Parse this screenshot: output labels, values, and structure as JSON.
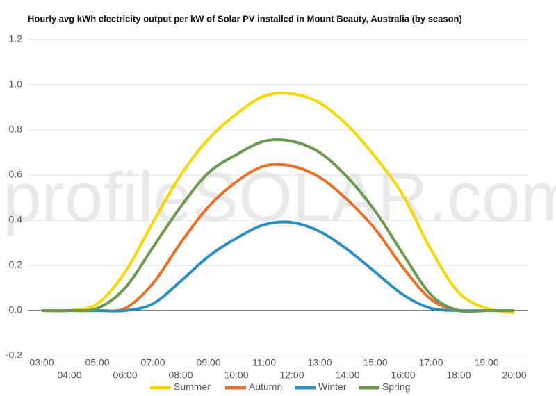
{
  "chart_data": {
    "type": "line",
    "title": "Hourly avg kWh electricity output per kW of Solar PV installed in Mount Beauty, Australia (by season)",
    "watermark": "profileSOLAR.com",
    "categories": [
      "03:00",
      "04:00",
      "05:00",
      "06:00",
      "07:00",
      "08:00",
      "09:00",
      "10:00",
      "11:00",
      "12:00",
      "13:00",
      "14:00",
      "15:00",
      "16:00",
      "17:00",
      "18:00",
      "19:00",
      "20:00"
    ],
    "series": [
      {
        "name": "Summer",
        "color": "#f5d800",
        "values": [
          0,
          0,
          0.03,
          0.17,
          0.39,
          0.6,
          0.76,
          0.87,
          0.95,
          0.96,
          0.92,
          0.82,
          0.68,
          0.51,
          0.27,
          0.08,
          0.01,
          -0.01
        ]
      },
      {
        "name": "Autumn",
        "color": "#e8712a",
        "values": [
          0,
          0,
          0,
          0.01,
          0.12,
          0.3,
          0.46,
          0.57,
          0.64,
          0.64,
          0.59,
          0.49,
          0.36,
          0.19,
          0.05,
          0,
          0,
          0
        ]
      },
      {
        "name": "Winter",
        "color": "#2a8fc1",
        "values": [
          0,
          0,
          0,
          0,
          0.03,
          0.13,
          0.24,
          0.32,
          0.38,
          0.39,
          0.35,
          0.27,
          0.17,
          0.07,
          0.01,
          0,
          0,
          0
        ]
      },
      {
        "name": "Spring",
        "color": "#6a9a4f",
        "values": [
          0,
          0,
          0.01,
          0.1,
          0.28,
          0.46,
          0.61,
          0.69,
          0.75,
          0.75,
          0.7,
          0.59,
          0.44,
          0.25,
          0.07,
          0,
          0,
          0
        ]
      }
    ],
    "ylim": [
      -0.2,
      1.2
    ],
    "yticks": [
      -0.2,
      {
        "value": 0,
        "label": "0.0"
      },
      0.2,
      0.4,
      0.6,
      0.8,
      {
        "value": 1,
        "label": "1.0"
      },
      1.2
    ],
    "grid": true
  }
}
